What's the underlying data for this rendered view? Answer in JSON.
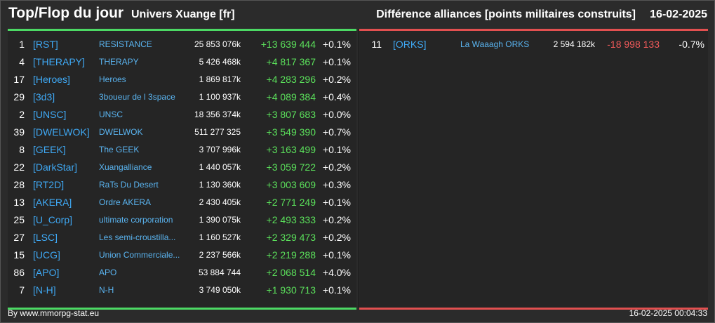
{
  "header": {
    "title": "Top/Flop du jour",
    "universe": "Univers Xuange [fr]",
    "subtitle": "Différence alliances [points militaires construits]",
    "date": "16-02-2025"
  },
  "colors": {
    "positive": "#5be05b",
    "negative": "#f05a5a",
    "tag": "#3fa9f5",
    "top_bar": "#4cd964",
    "flop_bar": "#e25050"
  },
  "top": [
    {
      "rank": "1",
      "tag": "[RST]",
      "name": "RESISTANCE",
      "points": "25 853 076k",
      "diff": "+13 639 444",
      "pct": "+0.1%"
    },
    {
      "rank": "4",
      "tag": "[THERAPY]",
      "name": "THERAPY",
      "points": "5 426 468k",
      "diff": "+4 817 367",
      "pct": "+0.1%"
    },
    {
      "rank": "17",
      "tag": "[Heroes]",
      "name": "Heroes",
      "points": "1 869 817k",
      "diff": "+4 283 296",
      "pct": "+0.2%"
    },
    {
      "rank": "29",
      "tag": "[3d3]",
      "name": "3boueur de l 3space",
      "points": "1 100 937k",
      "diff": "+4 089 384",
      "pct": "+0.4%"
    },
    {
      "rank": "2",
      "tag": "[UNSC]",
      "name": "UNSC",
      "points": "18 356 374k",
      "diff": "+3 807 683",
      "pct": "+0.0%"
    },
    {
      "rank": "39",
      "tag": "[DWELWOK]",
      "name": "DWELWOK",
      "points": "511 277 325",
      "diff": "+3 549 390",
      "pct": "+0.7%"
    },
    {
      "rank": "8",
      "tag": "[GEEK]",
      "name": "The GEEK",
      "points": "3 707 996k",
      "diff": "+3 163 499",
      "pct": "+0.1%"
    },
    {
      "rank": "22",
      "tag": "[DarkStar]",
      "name": "Xuangalliance",
      "points": "1 440 057k",
      "diff": "+3 059 722",
      "pct": "+0.2%"
    },
    {
      "rank": "28",
      "tag": "[RT2D]",
      "name": "RaTs Du Desert",
      "points": "1 130 360k",
      "diff": "+3 003 609",
      "pct": "+0.3%"
    },
    {
      "rank": "13",
      "tag": "[AKERA]",
      "name": "Ordre AKERA",
      "points": "2 430 405k",
      "diff": "+2 771 249",
      "pct": "+0.1%"
    },
    {
      "rank": "25",
      "tag": "[U_Corp]",
      "name": "ultimate corporation",
      "points": "1 390 075k",
      "diff": "+2 493 333",
      "pct": "+0.2%"
    },
    {
      "rank": "27",
      "tag": "[LSC]",
      "name": "Les semi-croustilla...",
      "points": "1 160 527k",
      "diff": "+2 329 473",
      "pct": "+0.2%"
    },
    {
      "rank": "15",
      "tag": "[UCG]",
      "name": "Union Commerciale...",
      "points": "2 237 566k",
      "diff": "+2 219 288",
      "pct": "+0.1%"
    },
    {
      "rank": "86",
      "tag": "[APO]",
      "name": "APO",
      "points": "53 884 744",
      "diff": "+2 068 514",
      "pct": "+4.0%"
    },
    {
      "rank": "7",
      "tag": "[N-H]",
      "name": "N-H",
      "points": "3 749 050k",
      "diff": "+1 930 713",
      "pct": "+0.1%"
    }
  ],
  "flop": [
    {
      "rank": "11",
      "tag": "[ORKS]",
      "name": "La Waaagh ORKS",
      "points": "2 594 182k",
      "diff": "-18 998 133",
      "pct": "-0.7%"
    }
  ],
  "footer": {
    "credit": "By www.mmorpg-stat.eu",
    "timestamp": "16-02-2025 00:04:33"
  }
}
